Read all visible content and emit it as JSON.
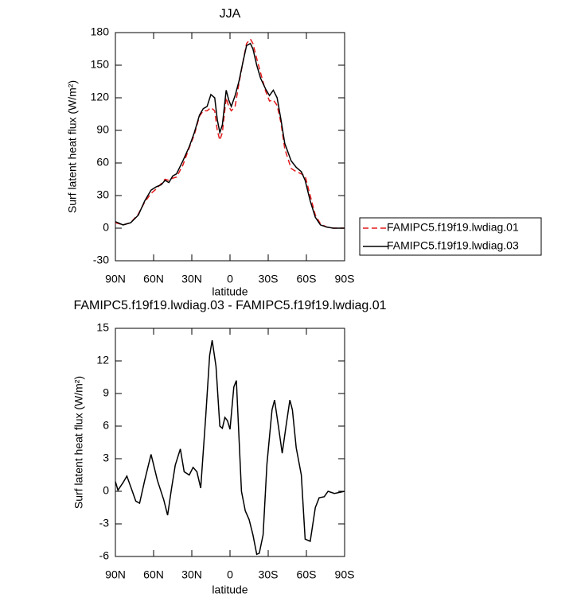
{
  "chart_data": [
    {
      "type": "line",
      "title": "JJA",
      "x_label": "latitude",
      "y_label": "Surf latent heat flux (W/m²)",
      "x": [
        90,
        84,
        78,
        72,
        67,
        62,
        58,
        54,
        51,
        48,
        45,
        42,
        37,
        32,
        28,
        24,
        21,
        18,
        15,
        12,
        10,
        8,
        6,
        3,
        1,
        -1,
        -4,
        -7,
        -10,
        -13,
        -16,
        -18,
        -21,
        -24,
        -28,
        -31,
        -34,
        -37,
        -40,
        -43,
        -48,
        -52,
        -56,
        -59,
        -63,
        -67,
        -71,
        -76,
        -81,
        -90
      ],
      "series": [
        {
          "name": "FAMIPC5.f19f19.lwdiag.01",
          "color": "#e41a1c",
          "dash": true,
          "values": [
            5,
            3,
            5,
            13,
            24,
            32,
            36,
            41,
            45,
            44,
            46,
            47,
            58,
            74,
            86,
            103,
            108,
            108,
            111,
            108,
            90,
            81,
            88,
            120,
            112,
            108,
            112,
            133,
            152,
            170,
            174,
            170,
            156,
            143,
            126,
            117,
            118,
            113,
            97,
            73,
            55,
            52,
            50,
            48,
            30,
            12,
            4,
            1,
            0,
            0
          ]
        },
        {
          "name": "FAMIPC5.f19f19.lwdiag.03",
          "color": "#000000",
          "dash": false,
          "values": [
            6,
            3,
            5,
            12,
            25,
            35,
            38,
            40,
            44,
            42,
            48,
            50,
            62,
            75,
            88,
            104,
            110,
            112,
            123,
            120,
            100,
            88,
            95,
            127,
            118,
            112,
            122,
            135,
            152,
            168,
            170,
            165,
            150,
            138,
            128,
            122,
            127,
            120,
            100,
            78,
            62,
            56,
            52,
            44,
            25,
            10,
            3,
            1,
            0,
            0
          ]
        }
      ],
      "xlim": [
        90,
        -90
      ],
      "xticks": [
        {
          "value": 90,
          "label": "90N"
        },
        {
          "value": 60,
          "label": "60N"
        },
        {
          "value": 30,
          "label": "30N"
        },
        0,
        {
          "value": -30,
          "label": "30S"
        },
        {
          "value": -60,
          "label": "60S"
        },
        {
          "value": -90,
          "label": "90S"
        }
      ],
      "ylim": [
        -30,
        180
      ],
      "yticks": [
        -30,
        0,
        30,
        60,
        90,
        120,
        150,
        180
      ],
      "legend": "right"
    },
    {
      "type": "line",
      "title": "FAMIPC5.f19f19.lwdiag.03 - FAMIPC5.f19f19.lwdiag.01",
      "x_label": "latitude",
      "y_label": "Surf latent heat flux (W/m²)",
      "x": [
        90,
        88,
        84,
        81,
        77,
        74,
        71,
        67,
        62,
        57,
        52,
        49,
        46,
        43,
        39,
        36,
        32,
        29,
        26,
        23,
        19,
        16,
        14,
        11,
        8,
        6,
        4,
        2,
        0,
        -3,
        -5,
        -9,
        -12,
        -15,
        -18,
        -21,
        -23,
        -26,
        -29,
        -33,
        -35,
        -38,
        -41,
        -44,
        -47,
        -49,
        -52,
        -56,
        -59,
        -63,
        -67,
        -70,
        -74,
        -77,
        -82,
        -90
      ],
      "values": [
        0.9,
        0.1,
        0.8,
        1.4,
        0.1,
        -0.9,
        -1.1,
        1.0,
        3.4,
        1.0,
        -0.8,
        -2.2,
        0.2,
        2.4,
        3.9,
        1.8,
        1.5,
        2.2,
        1.8,
        0.3,
        7,
        12.5,
        13.9,
        11.5,
        6,
        5.8,
        6.8,
        6.5,
        5.7,
        9.6,
        10.2,
        0,
        -1.8,
        -2.6,
        -4,
        -5.8,
        -5.7,
        -4,
        2.5,
        7.5,
        8.4,
        6,
        3.5,
        6,
        8.4,
        7.5,
        4,
        1.5,
        -4.4,
        -4.6,
        -1.5,
        -0.6,
        -0.5,
        0,
        -0.2,
        0
      ],
      "color": "#000000",
      "xlim": [
        90,
        -90
      ],
      "xticks": [
        {
          "value": 90,
          "label": "90N"
        },
        {
          "value": 60,
          "label": "60N"
        },
        {
          "value": 30,
          "label": "30N"
        },
        0,
        {
          "value": -30,
          "label": "30S"
        },
        {
          "value": -60,
          "label": "60S"
        },
        {
          "value": -90,
          "label": "90S"
        }
      ],
      "ylim": [
        -6,
        15
      ],
      "yticks": [
        -6,
        -3,
        0,
        3,
        6,
        9,
        12,
        15
      ]
    }
  ]
}
